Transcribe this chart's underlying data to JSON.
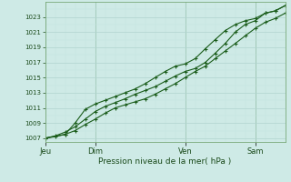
{
  "title": "",
  "xlabel": "Pression niveau de la mer( hPa )",
  "ylim": [
    1006.5,
    1025.0
  ],
  "yticks": [
    1007,
    1009,
    1011,
    1013,
    1015,
    1017,
    1019,
    1021,
    1023
  ],
  "background_color": "#ceeae6",
  "grid_major_color": "#b0d4cf",
  "grid_minor_color": "#c4e4e0",
  "line_color": "#1a5c1a",
  "day_labels": [
    "Jeu",
    "Dim",
    "Ven",
    "Sam"
  ],
  "day_positions": [
    0.0,
    0.208,
    0.583,
    0.875
  ],
  "xlim": [
    0.0,
    1.0
  ],
  "series1_x": [
    0.0,
    0.042,
    0.083,
    0.125,
    0.167,
    0.208,
    0.25,
    0.292,
    0.333,
    0.375,
    0.417,
    0.458,
    0.5,
    0.542,
    0.583,
    0.625,
    0.667,
    0.708,
    0.75,
    0.792,
    0.833,
    0.875,
    0.917,
    0.958,
    1.0
  ],
  "series1_y": [
    1007.0,
    1007.2,
    1007.5,
    1008.0,
    1008.8,
    1009.5,
    1010.3,
    1011.0,
    1011.4,
    1011.8,
    1012.2,
    1012.8,
    1013.5,
    1014.2,
    1015.0,
    1015.8,
    1016.5,
    1017.5,
    1018.5,
    1019.5,
    1020.5,
    1021.5,
    1022.3,
    1022.8,
    1023.5
  ],
  "series2_x": [
    0.0,
    0.042,
    0.083,
    0.125,
    0.167,
    0.208,
    0.25,
    0.292,
    0.333,
    0.375,
    0.417,
    0.458,
    0.5,
    0.542,
    0.583,
    0.625,
    0.667,
    0.708,
    0.75,
    0.792,
    0.833,
    0.875,
    0.917,
    0.958,
    1.0
  ],
  "series2_y": [
    1007.0,
    1007.3,
    1007.8,
    1008.5,
    1009.5,
    1010.5,
    1011.2,
    1011.7,
    1012.2,
    1012.8,
    1013.3,
    1013.8,
    1014.5,
    1015.2,
    1015.8,
    1016.2,
    1017.0,
    1018.2,
    1019.5,
    1021.0,
    1022.0,
    1022.5,
    1023.5,
    1023.8,
    1024.5
  ],
  "series3_x": [
    0.0,
    0.083,
    0.125,
    0.167,
    0.208,
    0.25,
    0.292,
    0.333,
    0.375,
    0.417,
    0.458,
    0.5,
    0.542,
    0.583,
    0.625,
    0.667,
    0.708,
    0.75,
    0.792,
    0.833,
    0.875,
    0.917,
    0.958,
    1.0
  ],
  "series3_y": [
    1007.0,
    1007.5,
    1009.0,
    1010.8,
    1011.5,
    1012.0,
    1012.5,
    1013.0,
    1013.5,
    1014.2,
    1015.0,
    1015.8,
    1016.5,
    1016.8,
    1017.5,
    1018.8,
    1020.0,
    1021.2,
    1022.0,
    1022.5,
    1022.8,
    1023.5,
    1023.8,
    1024.5
  ]
}
